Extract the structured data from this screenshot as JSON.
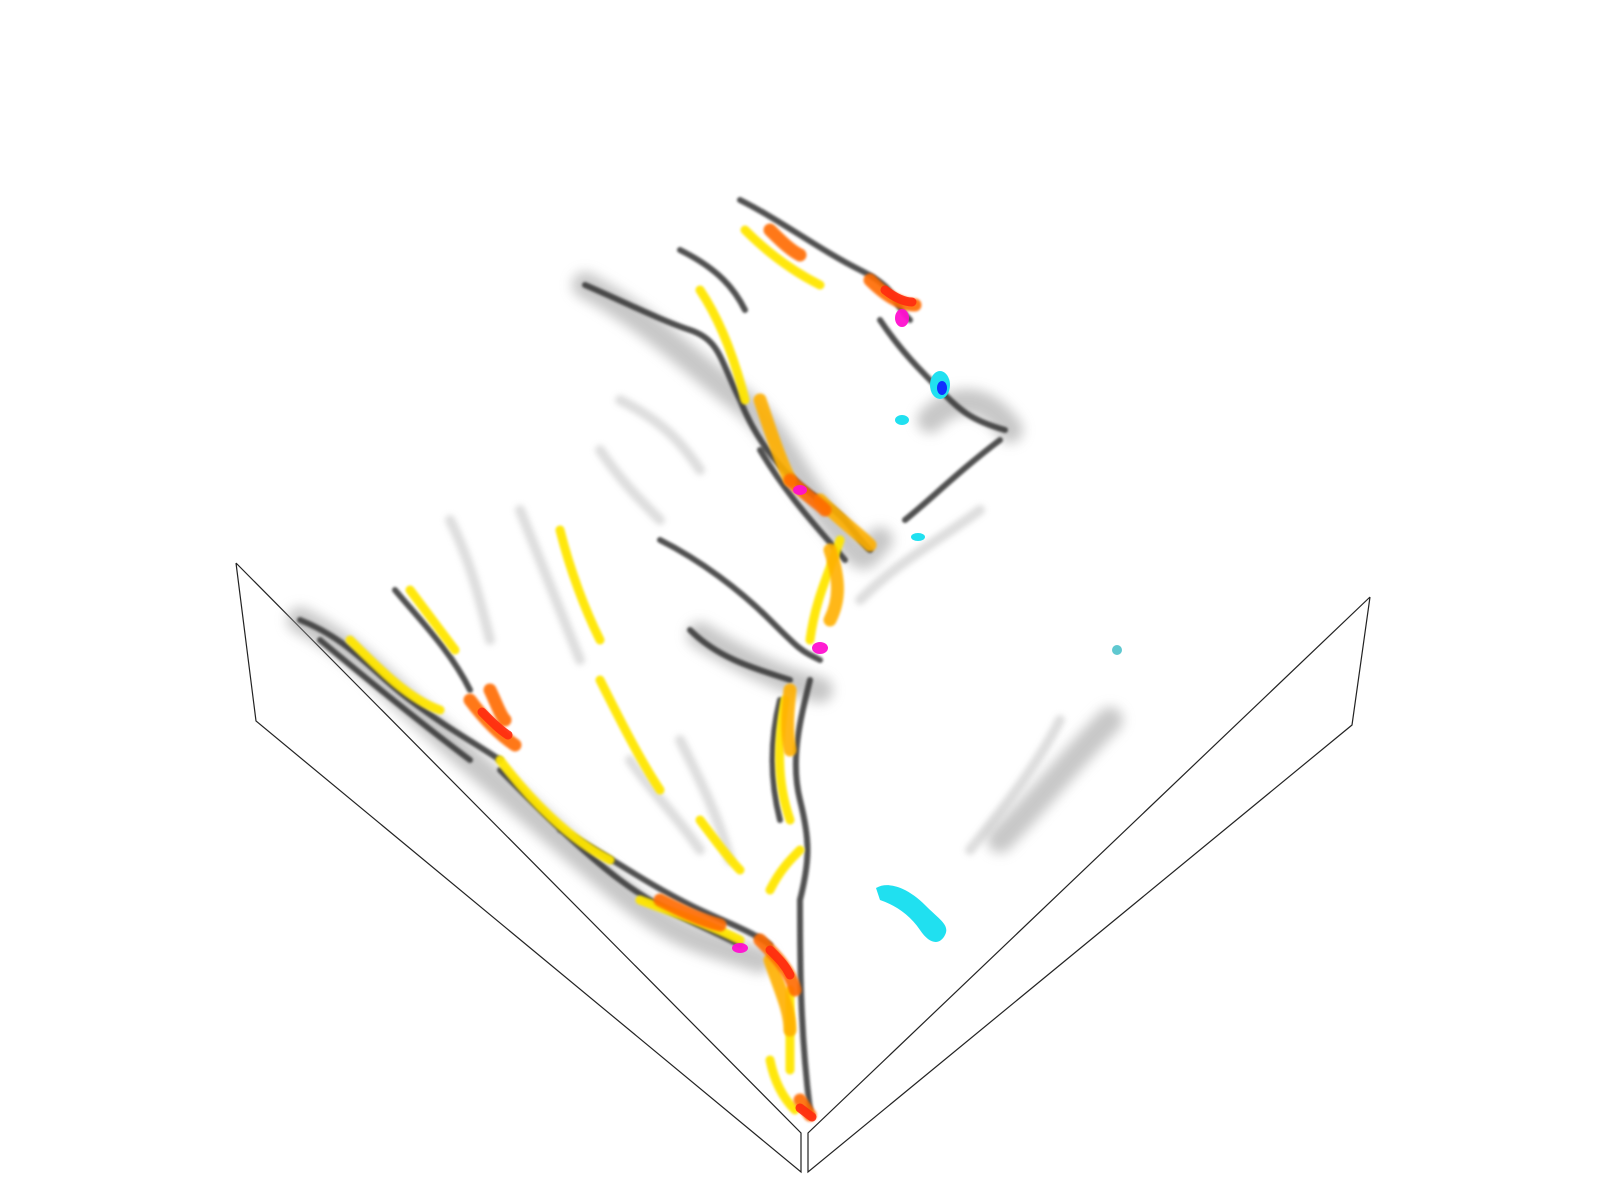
{
  "scene": {
    "background": "#ffffff",
    "box_edge_color": "#222222",
    "relief_shadow_color": "#3a3a3a",
    "palette": {
      "yellow": "#ffe600",
      "amber": "#ffb000",
      "orange": "#ff6a00",
      "red": "#ff2a10",
      "magenta": "#ff10d0",
      "cyan": "#20e0f0",
      "blue": "#1030ff"
    }
  }
}
